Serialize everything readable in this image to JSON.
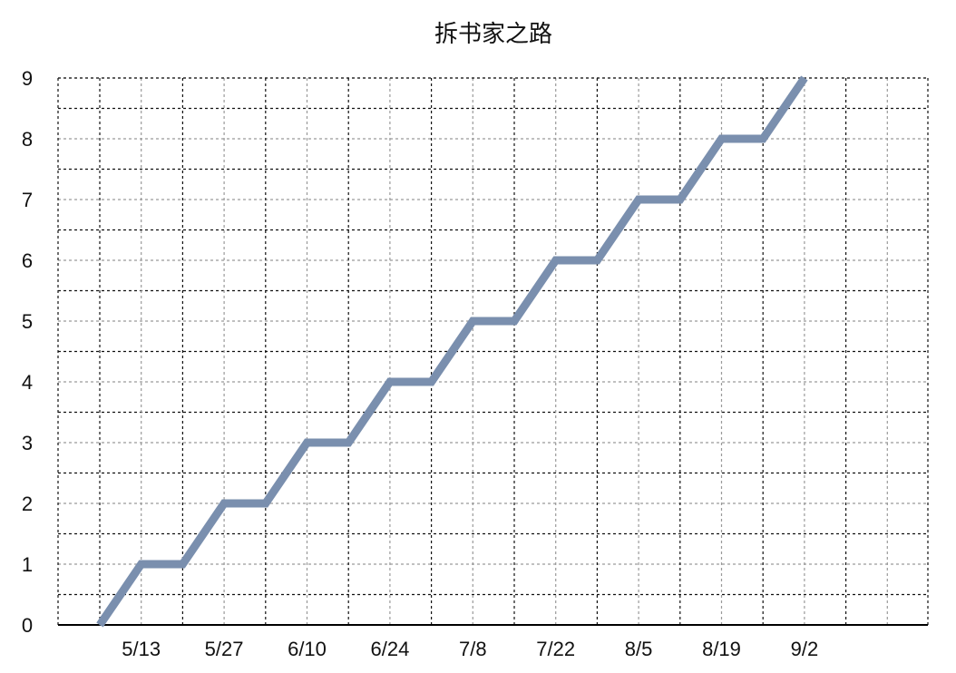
{
  "chart_data": {
    "type": "line",
    "title": "拆书家之路",
    "xlabel": "",
    "ylabel": "",
    "x_tick_labels": [
      "5/13",
      "5/27",
      "6/10",
      "6/24",
      "7/8",
      "7/22",
      "8/5",
      "8/19",
      "9/2"
    ],
    "x": [
      "5/6",
      "5/13",
      "5/20",
      "5/27",
      "6/3",
      "6/10",
      "6/17",
      "6/24",
      "7/1",
      "7/8",
      "7/15",
      "7/22",
      "7/29",
      "8/5",
      "8/12",
      "8/19",
      "8/26",
      "9/2"
    ],
    "series": [
      {
        "values": [
          0,
          1,
          1,
          2,
          2,
          3,
          3,
          4,
          4,
          5,
          5,
          6,
          6,
          7,
          7,
          8,
          8,
          9
        ]
      }
    ],
    "ylim": [
      0,
      9
    ],
    "y_ticks": [
      0,
      1,
      2,
      3,
      4,
      5,
      6,
      7,
      8,
      9
    ],
    "grid": true,
    "line_color": "#7a8fae"
  }
}
